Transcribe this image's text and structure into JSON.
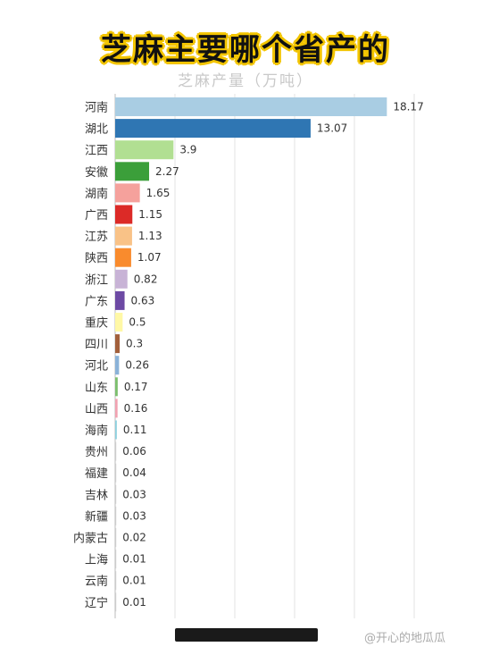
{
  "title": "芝麻主要哪个省产的",
  "subtitle": "芝麻产量（万吨）",
  "footer": {
    "left_text": "",
    "watermark": "@开心的地瓜瓜"
  },
  "chart_data": {
    "type": "bar",
    "orientation": "horizontal",
    "title": "芝麻主要哪个省产的",
    "subtitle": "芝麻产量（万吨）",
    "xlim": [
      0,
      20
    ],
    "grid": true,
    "categories": [
      "河南",
      "湖北",
      "江西",
      "安徽",
      "湖南",
      "广西",
      "江苏",
      "陕西",
      "浙江",
      "广东",
      "重庆",
      "四川",
      "河北",
      "山东",
      "山西",
      "海南",
      "贵州",
      "福建",
      "吉林",
      "新疆",
      "内蒙古",
      "上海",
      "云南",
      "辽宁"
    ],
    "values": [
      18.17,
      13.07,
      3.9,
      2.27,
      1.65,
      1.15,
      1.13,
      1.07,
      0.82,
      0.63,
      0.5,
      0.3,
      0.26,
      0.17,
      0.16,
      0.11,
      0.06,
      0.04,
      0.03,
      0.03,
      0.02,
      0.01,
      0.01,
      0.01
    ],
    "value_labels": [
      "18.17",
      "13.07",
      "3.9",
      "2.27",
      "1.65",
      "1.15",
      "1.13",
      "1.07",
      "0.82",
      "0.63",
      "0.5",
      "0.3",
      "0.26",
      "0.17",
      "0.16",
      "0.11",
      "0.06",
      "0.04",
      "0.03",
      "0.03",
      "0.02",
      "0.01",
      "0.01",
      "0.01"
    ],
    "colors": [
      "#a9cde3",
      "#2f76b3",
      "#b1df92",
      "#3b9f3a",
      "#f5a19c",
      "#dc2a27",
      "#f9c287",
      "#f98b2d",
      "#c8b3d6",
      "#6d4aa4",
      "#fff8a6",
      "#a25f3b",
      "#8ab2d8",
      "#7cbf6e",
      "#f1a2b1",
      "#8dd0de",
      "#cccccc",
      "#cccccc",
      "#cccccc",
      "#cccccc",
      "#cccccc",
      "#cccccc",
      "#cccccc",
      "#cccccc"
    ]
  }
}
